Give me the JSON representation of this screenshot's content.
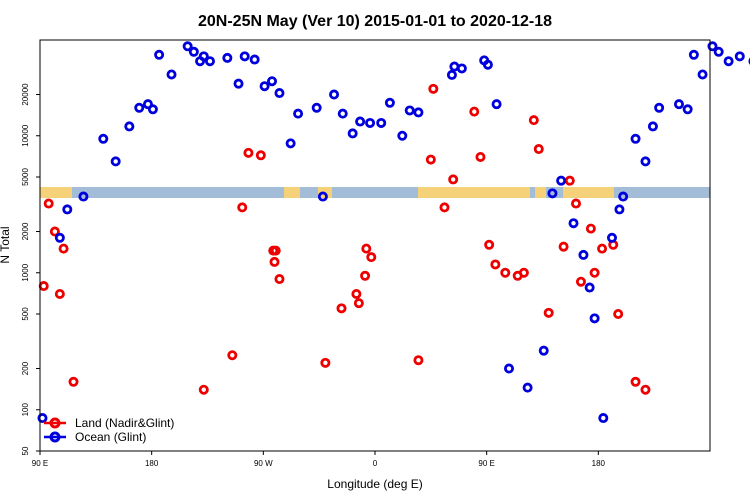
{
  "chart_data": {
    "type": "scatter",
    "title": "20N-25N May (Ver 10)   2015-01-01 to 2020-12-18",
    "xlabel": "Longitude (deg E)",
    "ylabel": "N Total",
    "y_scale": "log",
    "ylim": [
      50,
      50000
    ],
    "x_ticks": [
      {
        "value": 90,
        "label": "90 E"
      },
      {
        "value": 180,
        "label": "180"
      },
      {
        "value": 270,
        "label": "90 W"
      },
      {
        "value": 360,
        "label": "0"
      },
      {
        "value": 450,
        "label": "90 E"
      },
      {
        "value": 540,
        "label": "180"
      }
    ],
    "y_ticks": [
      50,
      100,
      200,
      500,
      1000,
      2000,
      5000,
      10000,
      20000
    ],
    "legend_position": "bottom-left",
    "colors": {
      "land": "#ee0000",
      "ocean": "#0000dd",
      "map_water": "#a3bcd8",
      "map_land": "#f5d27a"
    },
    "series": [
      {
        "name": "Land (Nadir&Glint)",
        "key": "land",
        "x": [
          93,
          97,
          102,
          106,
          109,
          117,
          222,
          245,
          253,
          258,
          268,
          278,
          280,
          283,
          279,
          333,
          320,
          345,
          352,
          347,
          357,
          353,
          395,
          407,
          405,
          416,
          423,
          440,
          445,
          452,
          457,
          465,
          475,
          480,
          488,
          492,
          500,
          512,
          517,
          522,
          526,
          534,
          537,
          543,
          552,
          556,
          570,
          578
        ],
        "y": [
          800,
          3200,
          2000,
          700,
          1500,
          160,
          140,
          250,
          3000,
          7500,
          7200,
          1450,
          1450,
          900,
          1200,
          550,
          220,
          700,
          950,
          600,
          1300,
          1500,
          230,
          22000,
          6700,
          3000,
          4800,
          15000,
          7000,
          1600,
          1150,
          1000,
          950,
          1000,
          13000,
          8000,
          510,
          1550,
          4700,
          3200,
          860,
          2100,
          1000,
          1500,
          1600,
          500,
          160,
          140
        ]
      },
      {
        "name": "Ocean (Glint)",
        "key": "ocean",
        "x": [
          92,
          106,
          112,
          125,
          141,
          151,
          162,
          170,
          177,
          181,
          186,
          196,
          209,
          214,
          219,
          222,
          227,
          241,
          250,
          255,
          263,
          271,
          277,
          283,
          292,
          298,
          313,
          318,
          327,
          334,
          342,
          348,
          356,
          365,
          372,
          382,
          388,
          395,
          422,
          424,
          430,
          448,
          451,
          458,
          468,
          483,
          496,
          503,
          510,
          520,
          528,
          533,
          537,
          544,
          551,
          557,
          560,
          570,
          578,
          584,
          589,
          605,
          612,
          617,
          624,
          632,
          637,
          645,
          654,
          665
        ],
        "y": [
          87,
          1800,
          2900,
          3600,
          9500,
          6500,
          11700,
          16000,
          17000,
          15600,
          39000,
          28000,
          45000,
          41000,
          35000,
          38000,
          35000,
          37000,
          24000,
          38000,
          36000,
          23000,
          25000,
          20500,
          8800,
          14500,
          16000,
          3600,
          20000,
          14500,
          10400,
          12700,
          12400,
          12400,
          17400,
          10000,
          15300,
          14800,
          27800,
          32000,
          31000,
          35500,
          33000,
          17000,
          200,
          145,
          270,
          3800,
          4700,
          2300,
          1350,
          780,
          465,
          87,
          1800,
          2900,
          3600,
          9500,
          6500,
          11700,
          16000,
          17000,
          15600,
          39000,
          28000,
          45000,
          41000,
          35000,
          38000,
          35000
        ]
      }
    ]
  }
}
